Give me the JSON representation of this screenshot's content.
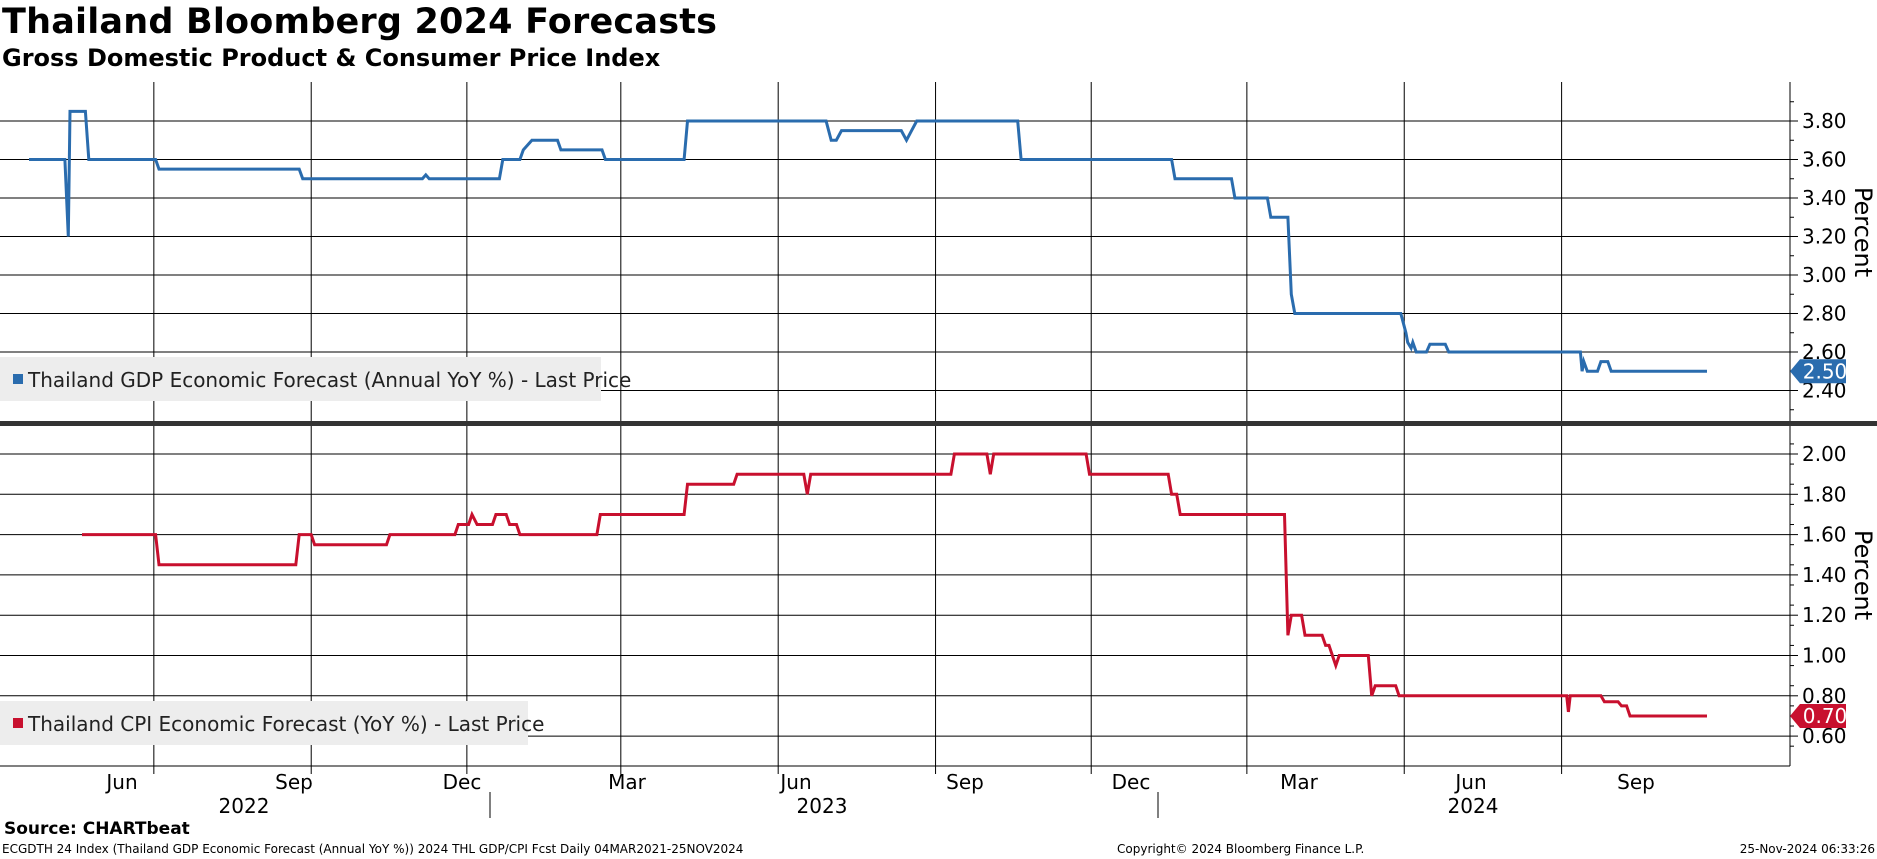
{
  "title": "Thailand Bloomberg 2024 Forecasts",
  "subtitle": "Gross Domestic Product & Consumer Price Index",
  "source": "Source: CHARTbeat",
  "footer": {
    "left": "ECGDTH 24 Index (Thailand GDP Economic Forecast (Annual YoY %)) 2024 THL GDP/CPI Fcst  Daily 04MAR2021-25NOV2024",
    "center": "Copyright© 2024 Bloomberg Finance L.P.",
    "right": "25-Nov-2024 06:33:26"
  },
  "x_axis": {
    "months": [
      "Jun",
      "Sep",
      "Dec",
      "Mar",
      "Jun",
      "Sep",
      "Dec",
      "Mar",
      "Jun",
      "Sep"
    ],
    "years": [
      "2022",
      "2023",
      "2024"
    ]
  },
  "colors": {
    "gdp": "#2a6cae",
    "cpi": "#c8102e",
    "grid": "#000000"
  },
  "chart_data": [
    {
      "type": "line",
      "title": "Thailand GDP Economic Forecast (Annual YoY %) - Last Price",
      "ylabel": "Percent",
      "ylim": [
        2.3,
        3.98
      ],
      "yticks": [
        "2.40",
        "2.60",
        "2.80",
        "3.00",
        "3.20",
        "3.40",
        "3.60",
        "3.80"
      ],
      "last_value": "2.50",
      "series": [
        {
          "name": "Thailand GDP Economic Forecast (Annual YoY %) - Last Price",
          "points": [
            [
              "2022-03-20",
              3.6
            ],
            [
              "2022-04-10",
              3.6
            ],
            [
              "2022-04-12",
              3.2
            ],
            [
              "2022-04-13",
              3.85
            ],
            [
              "2022-04-22",
              3.85
            ],
            [
              "2022-04-24",
              3.6
            ],
            [
              "2022-06-02",
              3.6
            ],
            [
              "2022-06-04",
              3.55
            ],
            [
              "2022-08-25",
              3.55
            ],
            [
              "2022-08-27",
              3.5
            ],
            [
              "2022-11-05",
              3.5
            ],
            [
              "2022-11-07",
              3.52
            ],
            [
              "2022-11-09",
              3.5
            ],
            [
              "2022-12-20",
              3.5
            ],
            [
              "2022-12-22",
              3.6
            ],
            [
              "2023-01-01",
              3.6
            ],
            [
              "2023-01-03",
              3.65
            ],
            [
              "2023-01-08",
              3.7
            ],
            [
              "2023-01-23",
              3.7
            ],
            [
              "2023-01-25",
              3.65
            ],
            [
              "2023-02-18",
              3.65
            ],
            [
              "2023-02-20",
              3.6
            ],
            [
              "2023-04-07",
              3.6
            ],
            [
              "2023-04-09",
              3.8
            ],
            [
              "2023-06-29",
              3.8
            ],
            [
              "2023-07-02",
              3.7
            ],
            [
              "2023-07-05",
              3.7
            ],
            [
              "2023-07-08",
              3.75
            ],
            [
              "2023-08-12",
              3.75
            ],
            [
              "2023-08-15",
              3.7
            ],
            [
              "2023-08-18",
              3.75
            ],
            [
              "2023-08-21",
              3.8
            ],
            [
              "2023-10-19",
              3.8
            ],
            [
              "2023-10-21",
              3.6
            ],
            [
              "2024-01-17",
              3.6
            ],
            [
              "2024-01-19",
              3.5
            ],
            [
              "2024-02-21",
              3.5
            ],
            [
              "2024-02-23",
              3.4
            ],
            [
              "2024-03-13",
              3.4
            ],
            [
              "2024-03-15",
              3.3
            ],
            [
              "2024-03-25",
              3.3
            ],
            [
              "2024-03-27",
              2.9
            ],
            [
              "2024-03-29",
              2.8
            ],
            [
              "2024-05-30",
              2.8
            ],
            [
              "2024-06-02",
              2.7
            ],
            [
              "2024-06-03",
              2.65
            ],
            [
              "2024-06-05",
              2.62
            ],
            [
              "2024-06-06",
              2.65
            ],
            [
              "2024-06-08",
              2.6
            ],
            [
              "2024-06-14",
              2.6
            ],
            [
              "2024-06-16",
              2.64
            ],
            [
              "2024-06-25",
              2.64
            ],
            [
              "2024-06-27",
              2.6
            ],
            [
              "2024-09-12",
              2.6
            ],
            [
              "2024-09-13",
              2.5
            ],
            [
              "2024-09-14",
              2.55
            ],
            [
              "2024-09-16",
              2.5
            ],
            [
              "2024-09-22",
              2.5
            ],
            [
              "2024-09-24",
              2.55
            ],
            [
              "2024-09-28",
              2.55
            ],
            [
              "2024-09-30",
              2.5
            ],
            [
              "2024-11-25",
              2.5
            ]
          ]
        }
      ]
    },
    {
      "type": "line",
      "title": "Thailand CPI Economic Forecast (YoY %) - Last Price",
      "ylabel": "Percent",
      "ylim": [
        0.55,
        2.08
      ],
      "yticks": [
        "0.60",
        "0.80",
        "1.00",
        "1.20",
        "1.40",
        "1.60",
        "1.80",
        "2.00"
      ],
      "last_value": "0.70",
      "series": [
        {
          "name": "Thailand CPI Economic Forecast (YoY %) - Last Price",
          "points": [
            [
              "2022-04-20",
              1.6
            ],
            [
              "2022-06-02",
              1.6
            ],
            [
              "2022-06-04",
              1.45
            ],
            [
              "2022-08-23",
              1.45
            ],
            [
              "2022-08-25",
              1.6
            ],
            [
              "2022-09-01",
              1.6
            ],
            [
              "2022-09-03",
              1.55
            ],
            [
              "2022-10-15",
              1.55
            ],
            [
              "2022-10-17",
              1.6
            ],
            [
              "2022-11-24",
              1.6
            ],
            [
              "2022-11-26",
              1.65
            ],
            [
              "2022-12-02",
              1.65
            ],
            [
              "2022-12-04",
              1.7
            ],
            [
              "2022-12-07",
              1.65
            ],
            [
              "2022-12-16",
              1.65
            ],
            [
              "2022-12-18",
              1.7
            ],
            [
              "2022-12-24",
              1.7
            ],
            [
              "2022-12-26",
              1.65
            ],
            [
              "2022-12-30",
              1.65
            ],
            [
              "2023-01-01",
              1.6
            ],
            [
              "2023-02-15",
              1.6
            ],
            [
              "2023-02-17",
              1.7
            ],
            [
              "2023-04-07",
              1.7
            ],
            [
              "2023-04-09",
              1.85
            ],
            [
              "2023-05-06",
              1.85
            ],
            [
              "2023-05-08",
              1.9
            ],
            [
              "2023-06-16",
              1.9
            ],
            [
              "2023-06-18",
              1.8
            ],
            [
              "2023-06-20",
              1.9
            ],
            [
              "2023-09-10",
              1.9
            ],
            [
              "2023-09-12",
              2.0
            ],
            [
              "2023-10-01",
              2.0
            ],
            [
              "2023-10-03",
              1.9
            ],
            [
              "2023-10-05",
              2.0
            ],
            [
              "2023-11-28",
              2.0
            ],
            [
              "2023-11-30",
              1.9
            ],
            [
              "2024-01-15",
              1.9
            ],
            [
              "2024-01-17",
              1.8
            ],
            [
              "2024-01-20",
              1.8
            ],
            [
              "2024-01-22",
              1.7
            ],
            [
              "2024-03-13",
              1.7
            ],
            [
              "2024-03-23",
              1.7
            ],
            [
              "2024-03-25",
              1.1
            ],
            [
              "2024-03-27",
              1.2
            ],
            [
              "2024-04-02",
              1.2
            ],
            [
              "2024-04-04",
              1.1
            ],
            [
              "2024-04-14",
              1.1
            ],
            [
              "2024-04-16",
              1.05
            ],
            [
              "2024-04-18",
              1.05
            ],
            [
              "2024-04-20",
              1.0
            ],
            [
              "2024-04-22",
              0.95
            ],
            [
              "2024-04-24",
              1.0
            ],
            [
              "2024-05-11",
              1.0
            ],
            [
              "2024-05-13",
              0.8
            ],
            [
              "2024-05-15",
              0.85
            ],
            [
              "2024-05-27",
              0.85
            ],
            [
              "2024-05-29",
              0.8
            ],
            [
              "2024-09-04",
              0.8
            ],
            [
              "2024-09-05",
              0.72
            ],
            [
              "2024-09-06",
              0.8
            ],
            [
              "2024-09-24",
              0.8
            ],
            [
              "2024-09-26",
              0.77
            ],
            [
              "2024-10-04",
              0.77
            ],
            [
              "2024-10-06",
              0.75
            ],
            [
              "2024-10-09",
              0.75
            ],
            [
              "2024-10-11",
              0.7
            ],
            [
              "2024-11-25",
              0.7
            ]
          ]
        }
      ]
    }
  ]
}
